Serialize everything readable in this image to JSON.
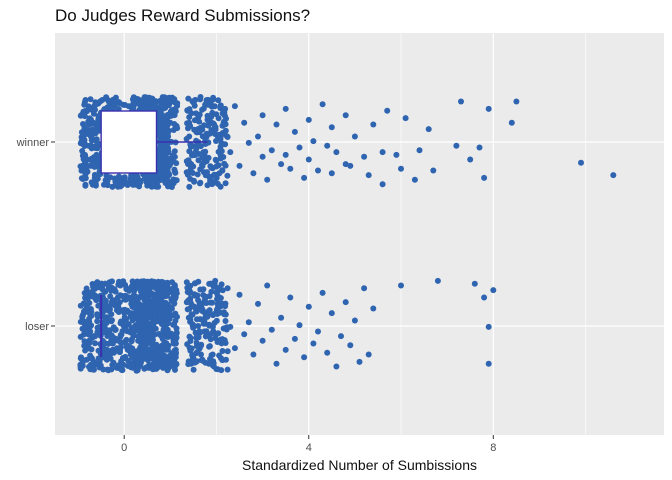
{
  "chart_data": {
    "type": "box+jitter",
    "title": "Do Judges Reward Submissions?",
    "xlabel": "Standardized Number of Sumbissions",
    "ylabel": "",
    "xlim": [
      -1.5,
      11.7
    ],
    "x_ticks": [
      0,
      4,
      8
    ],
    "x_tick_labels": [
      "0",
      "4",
      "8"
    ],
    "categories": [
      "winner",
      "loser"
    ],
    "grid": true,
    "colors": {
      "panel": "#ebebeb",
      "grid": "#ffffff",
      "points": "#2e64b0",
      "box_fill": "#ffffff",
      "box_stroke": "#3b2fb0"
    },
    "boxes": [
      {
        "category": "winner",
        "q1": -0.5,
        "median": -0.5,
        "q3": 0.7,
        "whisker_low": -0.5,
        "whisker_high": 1.8
      },
      {
        "category": "loser",
        "q1": -0.5,
        "median": -0.5,
        "q3": -0.5,
        "whisker_low": -0.5,
        "whisker_high": -0.5
      }
    ],
    "series": [
      {
        "category": "winner",
        "x": [
          10.6,
          9.9,
          8.5,
          8.4,
          7.9,
          7.8,
          7.7,
          7.5,
          7.3,
          7.2,
          6.7,
          6.6,
          6.4,
          6.3,
          6.1,
          6.0,
          5.9,
          5.7,
          5.6,
          5.6,
          5.4,
          5.3,
          5.2,
          5.0,
          4.9,
          4.8,
          4.8,
          4.6,
          4.5,
          4.5,
          4.4,
          4.3,
          4.2,
          4.1,
          4.0,
          4.0,
          3.9,
          3.8,
          3.7,
          3.6,
          3.5,
          3.5,
          3.4,
          3.3,
          3.2,
          3.1,
          3.0,
          3.0,
          2.9,
          2.8,
          2.7,
          2.6,
          2.5,
          2.4,
          2.3
        ],
        "y": [
          0.72,
          0.45,
          -0.88,
          -0.42,
          -0.72,
          0.78,
          0.12,
          0.38,
          -0.88,
          0.08,
          0.62,
          -0.28,
          0.18,
          0.82,
          -0.52,
          0.58,
          0.28,
          -0.68,
          0.92,
          0.22,
          -0.38,
          0.72,
          0.32,
          -0.12,
          0.52,
          -0.58,
          0.48,
          0.22,
          0.68,
          -0.32,
          0.08,
          -0.82,
          0.62,
          -0.02,
          0.38,
          -0.48,
          0.78,
          0.12,
          -0.22,
          0.58,
          -0.72,
          0.28,
          0.48,
          -0.38,
          0.18,
          0.82,
          -0.58,
          0.32,
          -0.12,
          0.68,
          0.02,
          -0.42,
          0.52,
          -0.78,
          0.22
        ]
      },
      {
        "category": "loser",
        "x": [
          8.0,
          7.9,
          7.9,
          7.8,
          7.6,
          6.8,
          6.0,
          5.4,
          5.3,
          5.2,
          5.1,
          5.0,
          4.9,
          4.8,
          4.7,
          4.6,
          4.5,
          4.4,
          4.3,
          4.2,
          4.1,
          4.0,
          3.9,
          3.8,
          3.7,
          3.6,
          3.5,
          3.4,
          3.3,
          3.2,
          3.1,
          3.0,
          2.9,
          2.8,
          2.7,
          2.6,
          2.5,
          2.4,
          2.3
        ],
        "y": [
          -0.78,
          0.82,
          0.02,
          -0.62,
          -0.92,
          -0.98,
          -0.88,
          -0.38,
          0.62,
          -0.82,
          0.78,
          -0.12,
          0.42,
          -0.52,
          0.22,
          0.88,
          -0.28,
          0.58,
          -0.72,
          0.12,
          0.38,
          -0.42,
          0.68,
          -0.02,
          0.28,
          -0.62,
          0.52,
          -0.18,
          0.82,
          0.08,
          -0.88,
          0.32,
          -0.48,
          0.62,
          -0.08,
          0.18,
          -0.68,
          0.48,
          0.02
        ]
      }
    ]
  }
}
